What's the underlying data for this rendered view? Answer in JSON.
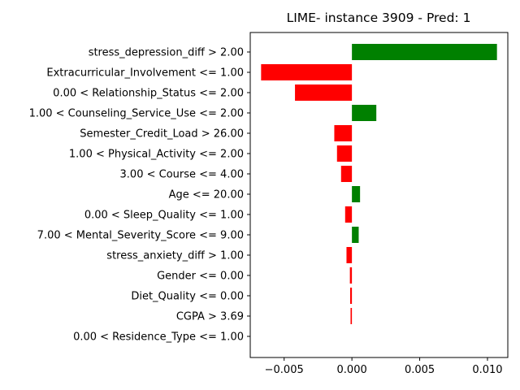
{
  "chart_data": {
    "type": "bar",
    "orientation": "horizontal",
    "title": "LIME- instance 3909 - Pred: 1",
    "xlabel": "",
    "ylabel": "",
    "xlim": [
      -0.0075,
      0.0115
    ],
    "xticks": [
      -0.005,
      0.0,
      0.005,
      0.01
    ],
    "xtick_labels": [
      "−0.005",
      "0.000",
      "0.005",
      "0.010"
    ],
    "grid": false,
    "colors": {
      "positive": "#008000",
      "negative": "#ff0000"
    },
    "categories": [
      "stress_depression_diff > 2.00",
      "Extracurricular_Involvement <= 1.00",
      "0.00 < Relationship_Status <= 2.00",
      "1.00 < Counseling_Service_Use <= 2.00",
      "Semester_Credit_Load > 26.00",
      "1.00 < Physical_Activity <= 2.00",
      "3.00 < Course <= 4.00",
      "Age <= 20.00",
      "0.00 < Sleep_Quality <= 1.00",
      "7.00 < Mental_Severity_Score <= 9.00",
      "stress_anxiety_diff > 1.00",
      "Gender <= 0.00",
      "Diet_Quality <= 0.00",
      "CGPA > 3.69",
      "0.00 < Residence_Type <= 1.00"
    ],
    "values": [
      0.0107,
      -0.0067,
      -0.0042,
      0.0018,
      -0.0013,
      -0.0011,
      -0.0008,
      0.0006,
      -0.0005,
      0.0005,
      -0.0004,
      -0.00015,
      -0.00013,
      -0.0001,
      0.0
    ]
  }
}
